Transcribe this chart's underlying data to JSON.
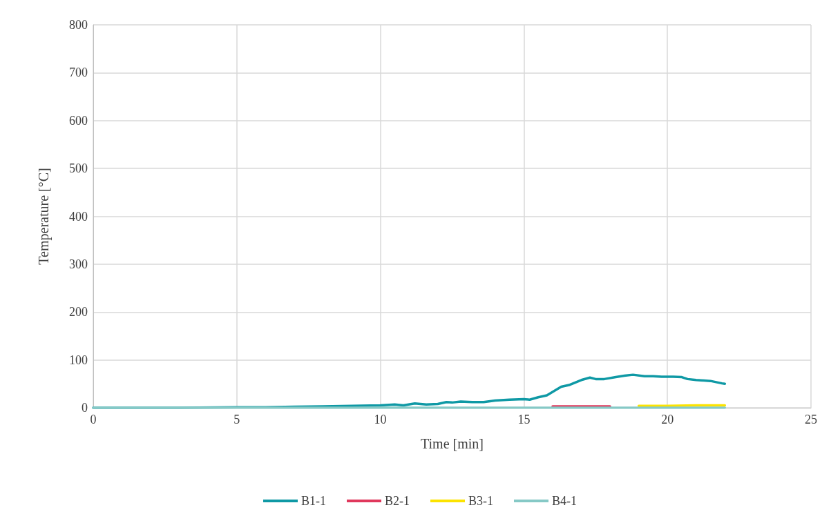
{
  "chart_data": {
    "type": "line",
    "xlabel": "Time [min]",
    "ylabel": "Temperature [°C]",
    "xlim": [
      0,
      25
    ],
    "xticks": [
      0,
      5,
      10,
      15,
      20,
      25
    ],
    "ylim": [
      0,
      800
    ],
    "yticks": [
      0,
      100,
      200,
      300,
      400,
      500,
      600,
      700,
      800
    ],
    "grid": true,
    "legend": "bottom",
    "marker": "none",
    "line_style": "solid",
    "series": [
      {
        "name": "B1-1",
        "color": "#0f99a5",
        "x": [
          0,
          3,
          5,
          6,
          7,
          8,
          9,
          10,
          10.5,
          10.8,
          11.2,
          11.6,
          12,
          12.3,
          12.5,
          12.8,
          13.2,
          13.6,
          14,
          14.5,
          15,
          15.2,
          15.5,
          15.8,
          16,
          16.3,
          16.6,
          17,
          17.3,
          17.5,
          17.8,
          18.2,
          18.5,
          18.8,
          19.2,
          19.5,
          19.8,
          20.2,
          20.5,
          20.7,
          21,
          21.5,
          21.9,
          22
        ],
        "values": [
          0,
          0,
          1,
          1,
          2,
          3,
          4,
          5,
          7,
          5,
          9,
          7,
          8,
          12,
          11,
          13,
          12,
          12,
          15,
          17,
          18,
          17,
          22,
          26,
          33,
          44,
          48,
          58,
          63,
          60,
          60,
          64,
          67,
          69,
          66,
          66,
          65,
          65,
          64,
          60,
          58,
          56,
          51,
          50
        ]
      },
      {
        "name": "B2-1",
        "color": "#e0385c",
        "x": [
          16,
          17,
          18
        ],
        "values": [
          3,
          3,
          3
        ]
      },
      {
        "name": "B3-1",
        "color": "#fce300",
        "x": [
          19,
          20,
          21,
          22
        ],
        "values": [
          4,
          4,
          5,
          5
        ]
      },
      {
        "name": "B4-1",
        "color": "#86c9c6",
        "x": [
          0,
          5,
          10,
          15,
          20,
          22
        ],
        "values": [
          0,
          0,
          0,
          0,
          0,
          0
        ]
      }
    ]
  }
}
